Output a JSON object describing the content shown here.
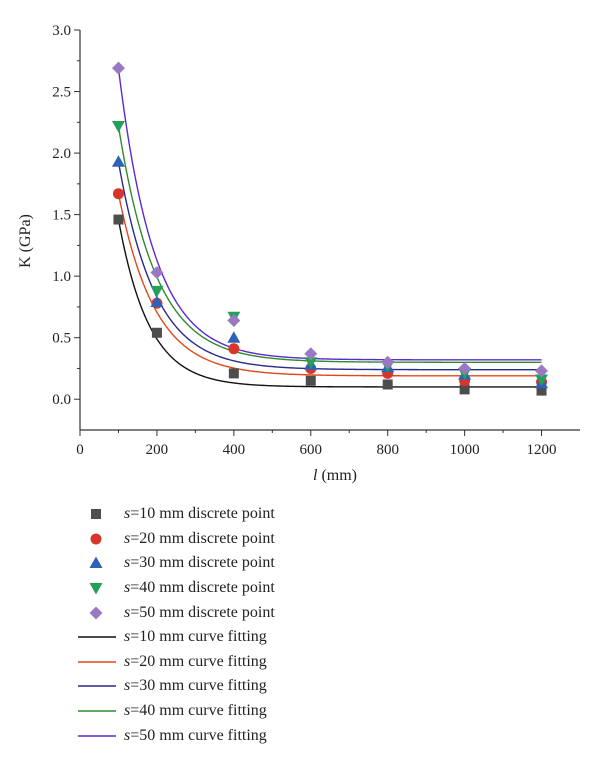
{
  "chart_data": {
    "type": "scatter",
    "xlabel_italic": "l",
    "xlabel_rest": " (mm)",
    "ylabel": "K (GPa)",
    "xlim": [
      0,
      1300
    ],
    "ylim": [
      -0.25,
      3.0
    ],
    "xticks": [
      0,
      200,
      400,
      600,
      800,
      1000,
      1200
    ],
    "yticks": [
      0.0,
      0.5,
      1.0,
      1.5,
      2.0,
      2.5,
      3.0
    ],
    "xtick_labels": [
      "0",
      "200",
      "400",
      "600",
      "800",
      "1000",
      "1200"
    ],
    "ytick_labels": [
      "0.0",
      "0.5",
      "1.0",
      "1.5",
      "2.0",
      "2.5",
      "3.0"
    ],
    "grid": false,
    "legend_position": "below",
    "x": [
      100,
      200,
      400,
      600,
      800,
      1000,
      1200
    ],
    "series": [
      {
        "name_prefix": "s",
        "name": "=10 mm discrete point",
        "marker": "square",
        "color": "#4d4d4d",
        "values": [
          1.46,
          0.54,
          0.21,
          0.15,
          0.12,
          0.08,
          0.07
        ]
      },
      {
        "name_prefix": "s",
        "name": "=20 mm discrete point",
        "marker": "circle",
        "color": "#d9362b",
        "values": [
          1.67,
          0.78,
          0.41,
          0.25,
          0.21,
          0.15,
          0.14
        ]
      },
      {
        "name_prefix": "s",
        "name": "=30 mm discrete point",
        "marker": "triangle-up",
        "color": "#2e62b8",
        "values": [
          1.93,
          0.79,
          0.5,
          0.28,
          0.26,
          0.2,
          0.13
        ]
      },
      {
        "name_prefix": "s",
        "name": "=40 mm discrete point",
        "marker": "triangle-down",
        "color": "#25a05a",
        "values": [
          2.22,
          0.88,
          0.67,
          0.3,
          0.27,
          0.21,
          0.16
        ]
      },
      {
        "name_prefix": "s",
        "name": "=50 mm discrete point",
        "marker": "diamond",
        "color": "#9b79c2",
        "values": [
          2.69,
          1.03,
          0.64,
          0.37,
          0.3,
          0.25,
          0.23
        ]
      }
    ],
    "fits": [
      {
        "name_prefix": "s",
        "name": "=10 mm curve fitting",
        "color": "#111111",
        "a": 0.1,
        "b": 1.36,
        "c": 100,
        "t": 80
      },
      {
        "name_prefix": "s",
        "name": "=20 mm curve fitting",
        "color": "#e0481a",
        "a": 0.19,
        "b": 1.48,
        "c": 100,
        "t": 95
      },
      {
        "name_prefix": "s",
        "name": "=30 mm curve fitting",
        "color": "#2a2a8a",
        "a": 0.24,
        "b": 1.69,
        "c": 100,
        "t": 95
      },
      {
        "name_prefix": "s",
        "name": "=40 mm curve fitting",
        "color": "#2e8b2e",
        "a": 0.3,
        "b": 1.92,
        "c": 100,
        "t": 98
      },
      {
        "name_prefix": "s",
        "name": "=50 mm curve fitting",
        "color": "#5a2ad0",
        "a": 0.32,
        "b": 2.37,
        "c": 100,
        "t": 93
      }
    ]
  }
}
